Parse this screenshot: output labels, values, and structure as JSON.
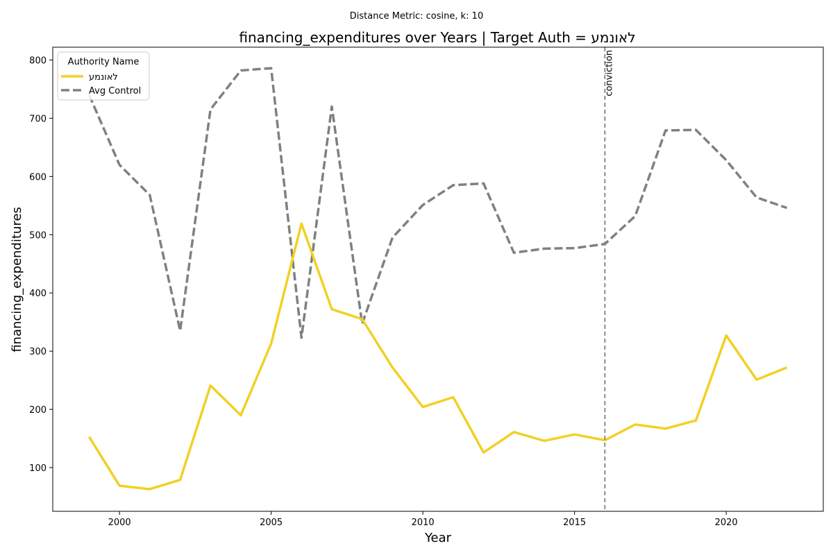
{
  "chart_data": {
    "type": "line",
    "subtitle": "Distance Metric: cosine, k: 10",
    "title": "financing_expenditures over Years | Target Auth = לאונמע",
    "xlabel": "Year",
    "ylabel": "financing_expenditures",
    "xlim": [
      1997.8,
      2023.2
    ],
    "ylim": [
      25,
      822
    ],
    "xticks": [
      2000,
      2005,
      2010,
      2015,
      2020
    ],
    "yticks": [
      100,
      200,
      300,
      400,
      500,
      600,
      700,
      800
    ],
    "grid": false,
    "legend": {
      "title": "Authority Name",
      "placement": "top-left"
    },
    "x": [
      1999,
      2000,
      2001,
      2002,
      2003,
      2004,
      2005,
      2006,
      2007,
      2008,
      2009,
      2010,
      2011,
      2012,
      2013,
      2014,
      2015,
      2016,
      2017,
      2018,
      2019,
      2020,
      2021,
      2022
    ],
    "series": [
      {
        "name": "לאונמע",
        "color": "#f2d024",
        "style": "solid",
        "values": [
          153,
          69,
          63,
          79,
          241,
          190,
          313,
          519,
          372,
          355,
          272,
          204,
          221,
          126,
          161,
          146,
          157,
          147,
          174,
          167,
          181,
          327,
          251,
          272
        ]
      },
      {
        "name": "Avg Control",
        "color": "#808080",
        "style": "dashed",
        "values": [
          740,
          620,
          568,
          335,
          715,
          782,
          786,
          323,
          720,
          347,
          495,
          551,
          585,
          588,
          469,
          476,
          477,
          484,
          532,
          679,
          680,
          628,
          564,
          546
        ]
      }
    ],
    "annotations": [
      {
        "type": "vline",
        "x": 2016,
        "label": "conviction",
        "color": "#808080",
        "style": "dashed"
      }
    ]
  }
}
